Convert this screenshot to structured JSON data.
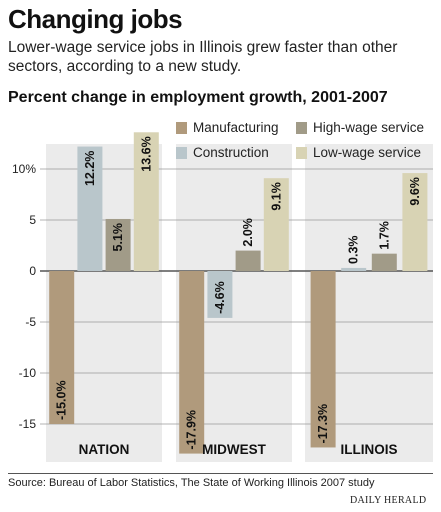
{
  "header": {
    "title": "Changing jobs",
    "subtitle": "Lower-wage service jobs in Illinois grew faster than other sectors, according to a new study.",
    "chart_title": "Percent change in employment growth, 2001-2007"
  },
  "footer": {
    "source": "Source: Bureau of Labor Statistics, The State of Working Illinois 2007 study",
    "credit": "DAILY HERALD"
  },
  "colors": {
    "manufacturing": "#b09a7c",
    "construction": "#b9c6cb",
    "high_wage_service": "#a19b88",
    "low_wage_service": "#d8d3b4",
    "panel": "#ebebeb",
    "gridline": "#9a9a9a"
  },
  "chart_data": {
    "type": "bar",
    "title": "Percent change in employment growth, 2001-2007",
    "categories": [
      "NATION",
      "MIDWEST",
      "ILLINOIS"
    ],
    "series": [
      {
        "name": "Manufacturing",
        "values": [
          -15.0,
          -17.9,
          -17.3
        ],
        "labels": [
          "-15.0%",
          "-17.9%",
          "-17.3%"
        ]
      },
      {
        "name": "Construction",
        "values": [
          12.2,
          -4.6,
          0.3
        ],
        "labels": [
          "12.2%",
          "-4.6%",
          "0.3%"
        ]
      },
      {
        "name": "High-wage service",
        "values": [
          5.1,
          2.0,
          1.7
        ],
        "labels": [
          "5.1%",
          "2.0%",
          "1.7%"
        ]
      },
      {
        "name": "Low-wage service",
        "values": [
          13.6,
          9.1,
          9.6
        ],
        "labels": [
          "13.6%",
          "9.1%",
          "9.6%"
        ]
      }
    ],
    "yticks": [
      10,
      5,
      0,
      -5,
      -10,
      -15
    ],
    "ytick_labels": [
      "10%",
      "5",
      "0",
      "-5",
      "-10",
      "-15"
    ],
    "ylim": [
      -18.5,
      14.5
    ],
    "legend_position": "top-right",
    "grid": true
  }
}
